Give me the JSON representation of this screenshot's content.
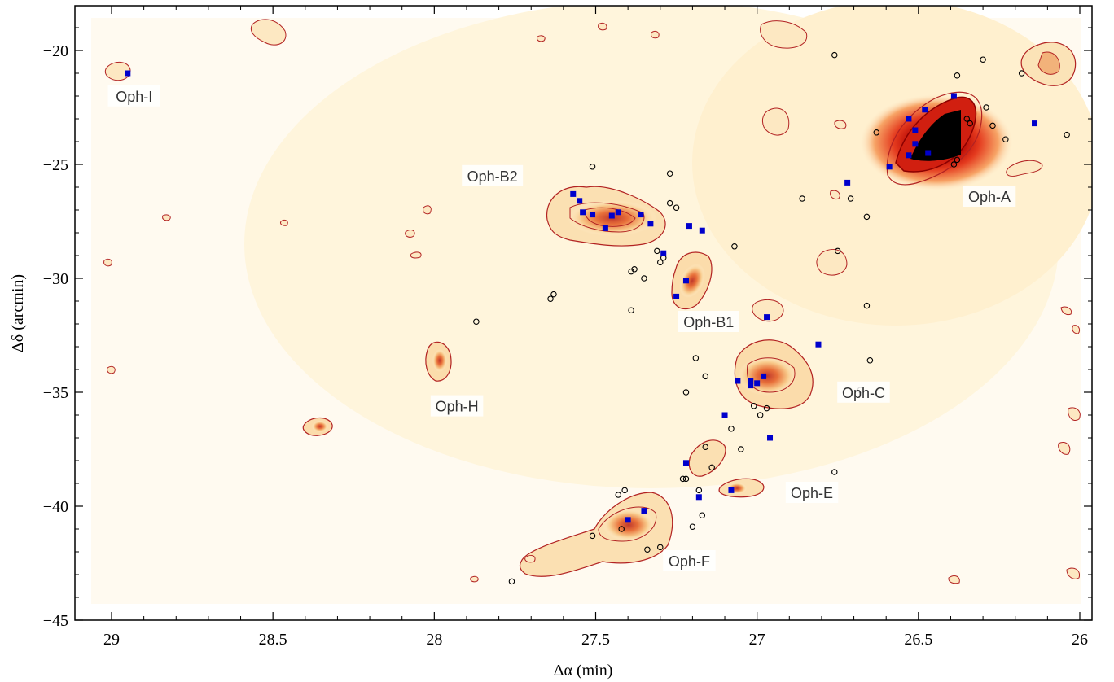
{
  "chart_data": {
    "type": "scatter",
    "xlabel": "Δα (min)",
    "ylabel": "Δδ (arcmin)",
    "xlim": [
      29.1,
      26.0
    ],
    "ylim": [
      -45,
      -18
    ],
    "x_ticks": [
      29,
      28.5,
      28,
      27.5,
      27,
      26.5,
      26
    ],
    "x_tick_labels": [
      "29",
      "28.5",
      "28",
      "27.5",
      "27",
      "26.5",
      "26"
    ],
    "y_ticks": [
      -20,
      -25,
      -30,
      -35,
      -40,
      -45
    ],
    "y_tick_labels": [
      "−20",
      "−25",
      "−30",
      "−35",
      "−40",
      "−45"
    ],
    "grid": false,
    "colors": {
      "contour": "#b22222",
      "emission_light": "#fff3cc",
      "emission_mid": "#f5a65b",
      "emission_dense": "#d7301f",
      "core": "#0000cc",
      "yso": "#000000"
    },
    "region_labels": [
      {
        "text": "Oph-I",
        "x": 28.93,
        "y": -22.1
      },
      {
        "text": "Oph-B2",
        "x": 27.82,
        "y": -25.6
      },
      {
        "text": "Oph-A",
        "x": 26.28,
        "y": -26.5
      },
      {
        "text": "Oph-B1",
        "x": 27.15,
        "y": -32.0
      },
      {
        "text": "Oph-H",
        "x": 27.93,
        "y": -35.7
      },
      {
        "text": "Oph-C",
        "x": 26.67,
        "y": -35.1
      },
      {
        "text": "Oph-E",
        "x": 26.83,
        "y": -39.5
      },
      {
        "text": "Oph-F",
        "x": 27.21,
        "y": -42.5
      }
    ],
    "series": [
      {
        "marker": "square",
        "color": "#0000cc",
        "points": [
          [
            28.95,
            -21.0
          ],
          [
            27.57,
            -26.3
          ],
          [
            27.55,
            -26.6
          ],
          [
            27.54,
            -27.1
          ],
          [
            27.51,
            -27.2
          ],
          [
            27.47,
            -27.8
          ],
          [
            27.45,
            -27.25
          ],
          [
            27.43,
            -27.1
          ],
          [
            27.36,
            -27.2
          ],
          [
            27.33,
            -27.6
          ],
          [
            27.29,
            -28.9
          ],
          [
            27.25,
            -30.8
          ],
          [
            27.22,
            -30.1
          ],
          [
            27.21,
            -27.7
          ],
          [
            27.17,
            -27.9
          ],
          [
            26.97,
            -31.7
          ],
          [
            26.81,
            -32.9
          ],
          [
            27.1,
            -36.0
          ],
          [
            26.98,
            -34.3
          ],
          [
            27.0,
            -34.6
          ],
          [
            27.02,
            -34.5
          ],
          [
            27.02,
            -34.7
          ],
          [
            26.96,
            -37.0
          ],
          [
            27.06,
            -34.5
          ],
          [
            27.22,
            -38.1
          ],
          [
            27.18,
            -39.6
          ],
          [
            27.08,
            -39.3
          ],
          [
            27.35,
            -40.2
          ],
          [
            27.4,
            -40.6
          ],
          [
            26.72,
            -25.8
          ],
          [
            26.59,
            -25.1
          ],
          [
            26.53,
            -24.6
          ],
          [
            26.53,
            -23.0
          ],
          [
            26.51,
            -23.5
          ],
          [
            26.51,
            -24.1
          ],
          [
            26.48,
            -22.6
          ],
          [
            26.39,
            -22.0
          ],
          [
            26.14,
            -23.2
          ],
          [
            26.47,
            -24.5
          ]
        ]
      },
      {
        "marker": "circle",
        "color": "#000000",
        "points": [
          [
            27.51,
            -25.1
          ],
          [
            27.27,
            -25.4
          ],
          [
            27.27,
            -26.7
          ],
          [
            27.25,
            -26.9
          ],
          [
            27.31,
            -28.8
          ],
          [
            27.29,
            -29.1
          ],
          [
            27.3,
            -29.3
          ],
          [
            27.38,
            -29.6
          ],
          [
            27.39,
            -29.7
          ],
          [
            27.35,
            -30.0
          ],
          [
            27.63,
            -30.7
          ],
          [
            27.64,
            -30.9
          ],
          [
            27.39,
            -31.4
          ],
          [
            27.87,
            -31.9
          ],
          [
            27.19,
            -33.5
          ],
          [
            27.16,
            -34.3
          ],
          [
            27.22,
            -35.0
          ],
          [
            27.07,
            -28.6
          ],
          [
            26.86,
            -26.5
          ],
          [
            26.76,
            -20.2
          ],
          [
            26.75,
            -28.8
          ],
          [
            26.66,
            -31.2
          ],
          [
            26.65,
            -33.6
          ],
          [
            26.68,
            -34.9
          ],
          [
            27.01,
            -35.6
          ],
          [
            26.97,
            -35.7
          ],
          [
            26.99,
            -36.0
          ],
          [
            27.08,
            -36.6
          ],
          [
            27.16,
            -37.4
          ],
          [
            27.05,
            -37.5
          ],
          [
            27.14,
            -38.3
          ],
          [
            27.22,
            -38.8
          ],
          [
            27.23,
            -38.8
          ],
          [
            27.18,
            -39.3
          ],
          [
            27.17,
            -40.4
          ],
          [
            27.2,
            -40.9
          ],
          [
            27.41,
            -39.3
          ],
          [
            27.43,
            -39.5
          ],
          [
            27.3,
            -41.8
          ],
          [
            27.34,
            -41.9
          ],
          [
            27.42,
            -41.0
          ],
          [
            27.51,
            -41.3
          ],
          [
            27.76,
            -43.3
          ],
          [
            26.76,
            -38.5
          ],
          [
            26.38,
            -21.1
          ],
          [
            26.3,
            -20.4
          ],
          [
            26.29,
            -22.5
          ],
          [
            26.35,
            -23.0
          ],
          [
            26.34,
            -23.2
          ],
          [
            26.27,
            -23.3
          ],
          [
            26.23,
            -23.9
          ],
          [
            26.18,
            -21.0
          ],
          [
            26.04,
            -23.7
          ],
          [
            26.42,
            -24.1
          ],
          [
            26.43,
            -24.5
          ],
          [
            26.38,
            -24.8
          ],
          [
            26.39,
            -25.0
          ],
          [
            26.63,
            -23.6
          ],
          [
            26.71,
            -26.5
          ],
          [
            26.66,
            -27.3
          ]
        ]
      }
    ]
  }
}
